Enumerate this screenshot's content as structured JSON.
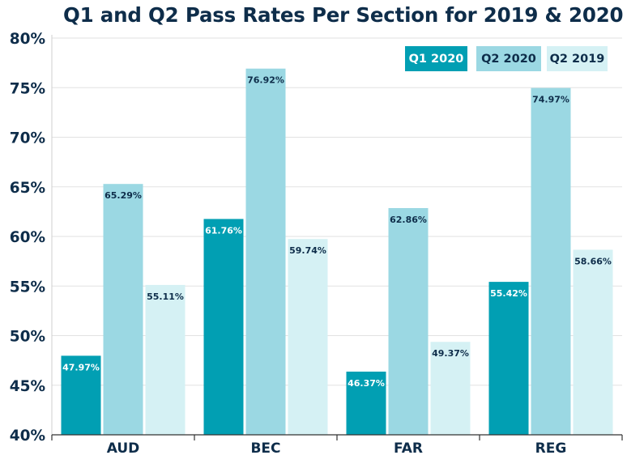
{
  "chart_data": {
    "type": "bar",
    "title": "Q1 and Q2 Pass Rates Per Section for 2019 & 2020",
    "xlabel": "",
    "ylabel": "",
    "ylim": [
      40,
      80
    ],
    "yticks": [
      "40%",
      "45%",
      "50%",
      "55%",
      "60%",
      "65%",
      "70%",
      "75%",
      "80%"
    ],
    "grid": true,
    "legend_position": "top-right",
    "categories": [
      "AUD",
      "BEC",
      "FAR",
      "REG"
    ],
    "series": [
      {
        "name": "Q1 2020",
        "color": "#019fb3",
        "label_color": "#ffffff",
        "values": [
          47.97,
          61.76,
          46.37,
          55.42
        ],
        "labels": [
          "47.97%",
          "61.76%",
          "46.37%",
          "55.42%"
        ]
      },
      {
        "name": "Q2 2020",
        "color": "#9bd8e3",
        "label_color": "#0e2d4a",
        "values": [
          65.29,
          76.92,
          62.86,
          74.97
        ],
        "labels": [
          "65.29%",
          "76.92%",
          "62.86%",
          "74.97%"
        ]
      },
      {
        "name": "Q2 2019",
        "color": "#d5f1f4",
        "label_color": "#0e2d4a",
        "values": [
          55.11,
          59.74,
          49.37,
          58.66
        ],
        "labels": [
          "55.11%",
          "59.74%",
          "49.37%",
          "58.66%"
        ]
      }
    ]
  }
}
